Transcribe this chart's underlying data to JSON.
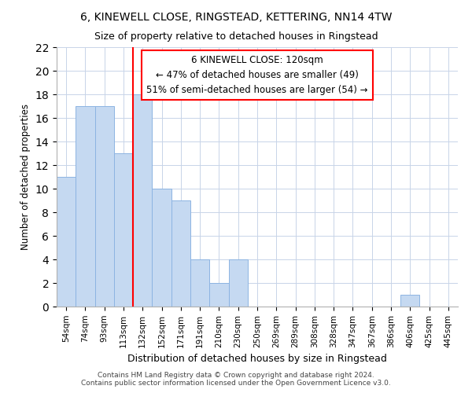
{
  "title1": "6, KINEWELL CLOSE, RINGSTEAD, KETTERING, NN14 4TW",
  "title2": "Size of property relative to detached houses in Ringstead",
  "xlabel": "Distribution of detached houses by size in Ringstead",
  "ylabel": "Number of detached properties",
  "categories": [
    "54sqm",
    "74sqm",
    "93sqm",
    "113sqm",
    "132sqm",
    "152sqm",
    "171sqm",
    "191sqm",
    "210sqm",
    "230sqm",
    "250sqm",
    "269sqm",
    "289sqm",
    "308sqm",
    "328sqm",
    "347sqm",
    "367sqm",
    "386sqm",
    "406sqm",
    "425sqm",
    "445sqm"
  ],
  "values": [
    11,
    17,
    17,
    13,
    18,
    10,
    9,
    4,
    2,
    4,
    0,
    0,
    0,
    0,
    0,
    0,
    0,
    0,
    1,
    0,
    0
  ],
  "bar_color": "#c5d9f1",
  "bar_edge_color": "#8db4e2",
  "red_line_x": 3.5,
  "annotation_line1": "6 KINEWELL CLOSE: 120sqm",
  "annotation_line2": "← 47% of detached houses are smaller (49)",
  "annotation_line3": "51% of semi-detached houses are larger (54) →",
  "ylim": [
    0,
    22
  ],
  "yticks": [
    0,
    2,
    4,
    6,
    8,
    10,
    12,
    14,
    16,
    18,
    20,
    22
  ],
  "footer1": "Contains HM Land Registry data © Crown copyright and database right 2024.",
  "footer2": "Contains public sector information licensed under the Open Government Licence v3.0.",
  "bg_color": "#ffffff",
  "grid_color": "#c8d4e8"
}
